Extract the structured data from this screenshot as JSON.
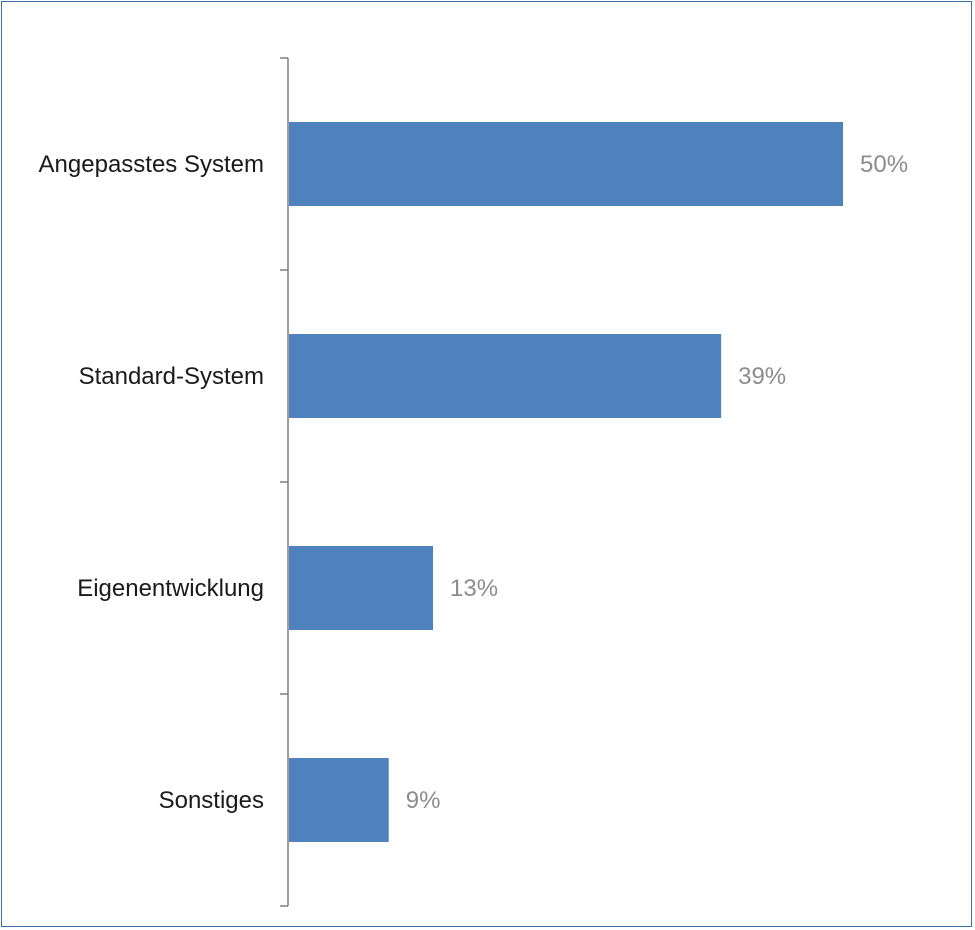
{
  "chart_data": {
    "type": "bar",
    "orientation": "horizontal",
    "categories": [
      "Angepasstes System",
      "Standard-System",
      "Eigenentwicklung",
      "Sonstiges"
    ],
    "values": [
      50,
      39,
      13,
      9
    ],
    "value_labels": [
      "50%",
      "39%",
      "13%",
      "9%"
    ],
    "unit": "%",
    "xlim": [
      0,
      50
    ],
    "grid": false,
    "legend": "none",
    "bar_color": "#4f81bd",
    "axis_color": "#7f7f7f",
    "value_label_color": "#8c8c8c"
  }
}
